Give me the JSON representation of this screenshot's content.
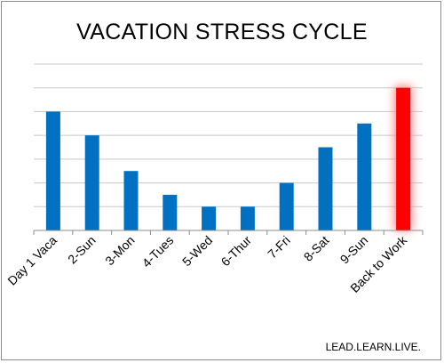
{
  "chart_data": {
    "type": "bar",
    "title": "VACATION STRESS CYCLE",
    "categories": [
      "Day 1 Vaca",
      "2-Sun",
      "3-Mon",
      "4-Tues",
      "5-Wed",
      "6-Thur",
      "7-Fri",
      "8-Sat",
      "9-Sun",
      "Back to Work"
    ],
    "values": [
      5,
      4,
      2.5,
      1.5,
      1,
      1,
      2,
      3.5,
      4.5,
      6
    ],
    "ylim": [
      0,
      7
    ],
    "grid": true,
    "legend": "none",
    "colors": {
      "bar": "#0070c0",
      "highlight_bar": "#ff0000",
      "highlight_glow": "#ff8080",
      "gridline": "#c8c8c8",
      "axis": "#8c8c8c"
    },
    "highlight_index": 9
  },
  "footer": "LEAD.LEARN.LIVE."
}
